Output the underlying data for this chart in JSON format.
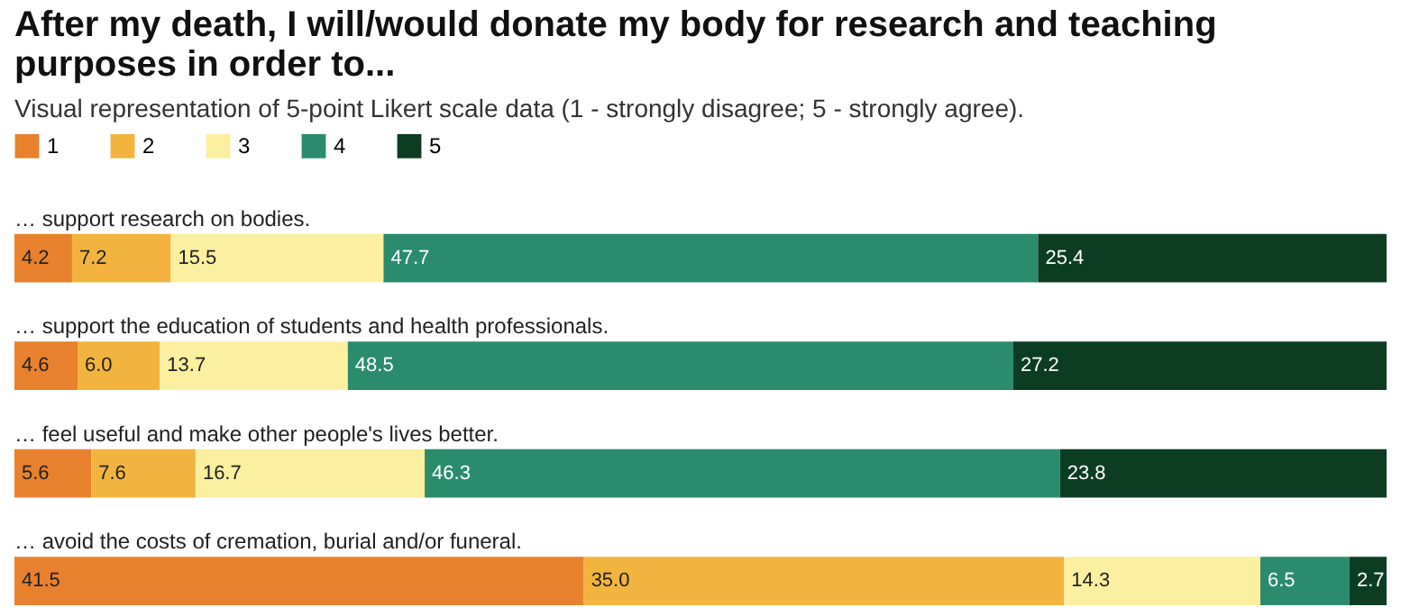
{
  "chart_data": {
    "type": "bar",
    "orientation": "horizontal",
    "stacked": true,
    "data_labels": true,
    "legend": "top left",
    "title": "After my death, I will/would donate my body for research and teaching purposes in order to...",
    "subtitle": "Visual representation of 5-point Likert scale data (1 - strongly disagree; 5 - strongly agree).",
    "categories": [
      "… support research on bodies.",
      "… support the education of students and health professionals.",
      "… feel useful and make other people's lives better.",
      "… avoid the costs of cremation, burial and/or funeral."
    ],
    "series": [
      {
        "name": "1",
        "color": "#e8812e",
        "values": [
          4.2,
          4.6,
          5.6,
          41.5
        ]
      },
      {
        "name": "2",
        "color": "#f2b43f",
        "values": [
          7.2,
          6.0,
          7.6,
          35.0
        ],
        "value_labels": [
          "7.2",
          "6.0",
          "7.6",
          "35.0"
        ]
      },
      {
        "name": "3",
        "color": "#fcef9f",
        "values": [
          15.5,
          13.7,
          16.7,
          14.3
        ]
      },
      {
        "name": "4",
        "color": "#2a8c6c",
        "values": [
          47.7,
          48.5,
          46.3,
          6.5
        ]
      },
      {
        "name": "5",
        "color": "#0c3d23",
        "values": [
          25.4,
          27.2,
          23.8,
          2.7
        ]
      }
    ]
  }
}
